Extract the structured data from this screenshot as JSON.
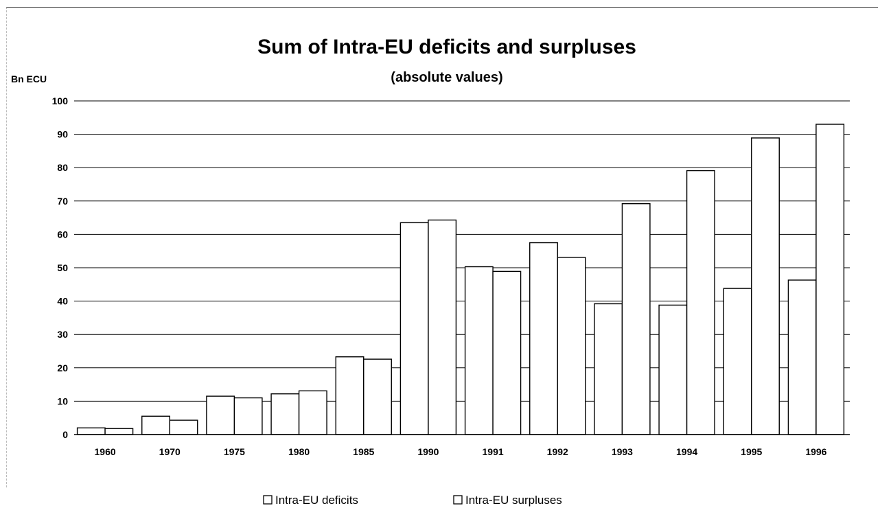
{
  "chart_data": {
    "type": "bar",
    "title": "Sum of Intra-EU deficits and surpluses",
    "subtitle": "(absolute values)",
    "ylabel": "Bn ECU",
    "xlabel": "",
    "ylim": [
      0,
      100
    ],
    "yticks": [
      0,
      10,
      20,
      30,
      40,
      50,
      60,
      70,
      80,
      90,
      100
    ],
    "grid": true,
    "legend_position": "bottom",
    "categories": [
      "1960",
      "1970",
      "1975",
      "1980",
      "1985",
      "1990",
      "1991",
      "1992",
      "1993",
      "1994",
      "1995",
      "1996"
    ],
    "series": [
      {
        "name": "Intra-EU deficits",
        "values": [
          2.0,
          5.5,
          11.5,
          12.2,
          23.3,
          63.5,
          50.3,
          57.5,
          39.2,
          38.8,
          43.8,
          46.3
        ],
        "color": "#ffffff"
      },
      {
        "name": "Intra-EU surpluses",
        "values": [
          1.8,
          4.3,
          11.0,
          13.1,
          22.6,
          64.3,
          48.9,
          53.1,
          69.2,
          79.1,
          88.9,
          93.0
        ],
        "color": "#ffffff"
      }
    ]
  }
}
